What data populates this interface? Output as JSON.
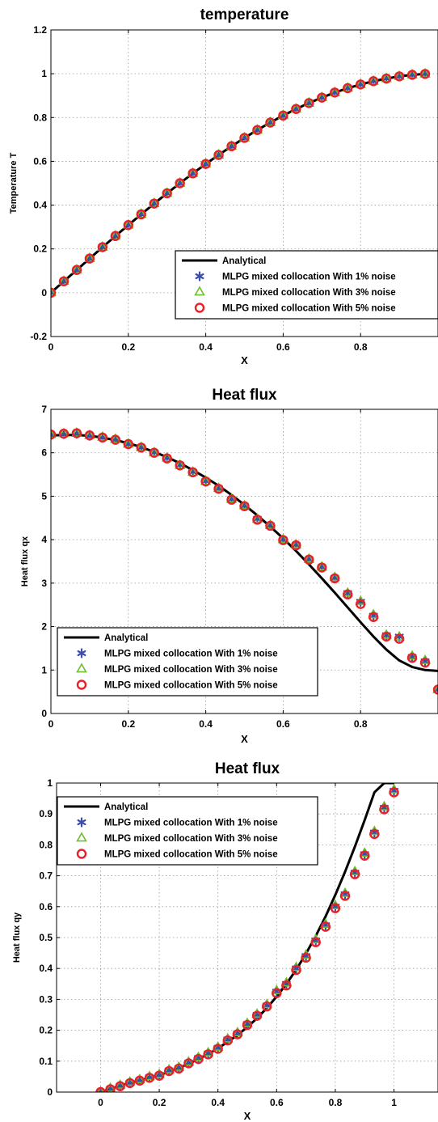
{
  "chart_data": [
    {
      "type": "line",
      "title": "temperature",
      "xlabel": "X",
      "ylabel": "Temperature T",
      "xlim": [
        0,
        1
      ],
      "ylim": [
        -0.2,
        1.2
      ],
      "xticks": [
        0,
        0.2,
        0.4,
        0.6,
        0.8
      ],
      "yticks": [
        -0.2,
        0,
        0.2,
        0.4,
        0.6,
        0.8,
        1,
        1.2
      ],
      "grid": true,
      "legend_position": "bottom-right",
      "x": [
        0,
        0.0333,
        0.0667,
        0.1,
        0.1333,
        0.1667,
        0.2,
        0.2333,
        0.2667,
        0.3,
        0.3333,
        0.3667,
        0.4,
        0.4333,
        0.4667,
        0.5,
        0.5333,
        0.5667,
        0.6,
        0.6333,
        0.6667,
        0.7,
        0.7333,
        0.7667,
        0.8,
        0.8333,
        0.8667,
        0.9,
        0.9333,
        0.9667
      ],
      "series": [
        {
          "name": "Analytical",
          "style": "line",
          "color": "#000000",
          "values": [
            0,
            0.052,
            0.104,
            0.156,
            0.208,
            0.259,
            0.309,
            0.358,
            0.407,
            0.454,
            0.5,
            0.545,
            0.588,
            0.629,
            0.669,
            0.707,
            0.743,
            0.777,
            0.809,
            0.839,
            0.866,
            0.891,
            0.914,
            0.934,
            0.951,
            0.966,
            0.978,
            0.988,
            0.995,
            0.999
          ]
        },
        {
          "name": "MLPG mixed collocation With 1% noise",
          "style": "star",
          "color": "#3b4ea8",
          "values": [
            0,
            0.052,
            0.104,
            0.156,
            0.208,
            0.259,
            0.309,
            0.358,
            0.407,
            0.454,
            0.5,
            0.545,
            0.588,
            0.629,
            0.669,
            0.707,
            0.743,
            0.777,
            0.809,
            0.839,
            0.866,
            0.891,
            0.914,
            0.934,
            0.951,
            0.966,
            0.978,
            0.988,
            0.995,
            0.999
          ]
        },
        {
          "name": "MLPG mixed collocation With 3% noise",
          "style": "triangle",
          "color": "#6cbf2a",
          "values": [
            0,
            0.052,
            0.104,
            0.156,
            0.208,
            0.259,
            0.309,
            0.358,
            0.407,
            0.454,
            0.5,
            0.545,
            0.588,
            0.629,
            0.669,
            0.707,
            0.743,
            0.777,
            0.809,
            0.839,
            0.866,
            0.891,
            0.914,
            0.934,
            0.951,
            0.966,
            0.978,
            0.988,
            0.995,
            0.999
          ]
        },
        {
          "name": "MLPG mixed collocation With 5% noise",
          "style": "circle",
          "color": "#e8202a",
          "values": [
            0,
            0.052,
            0.104,
            0.156,
            0.208,
            0.259,
            0.309,
            0.358,
            0.407,
            0.454,
            0.5,
            0.545,
            0.588,
            0.629,
            0.669,
            0.707,
            0.743,
            0.777,
            0.809,
            0.839,
            0.866,
            0.891,
            0.914,
            0.934,
            0.951,
            0.966,
            0.978,
            0.988,
            0.995,
            0.999
          ]
        }
      ]
    },
    {
      "type": "line",
      "title": "Heat flux",
      "xlabel": "X",
      "ylabel": "Heat flux qx",
      "xlim": [
        0,
        1
      ],
      "ylim": [
        0,
        7
      ],
      "xticks": [
        0,
        0.2,
        0.4,
        0.6,
        0.8
      ],
      "yticks": [
        0,
        1,
        2,
        3,
        4,
        5,
        6,
        7
      ],
      "grid": true,
      "legend_position": "bottom-left",
      "x": [
        0,
        0.0333,
        0.0667,
        0.1,
        0.1333,
        0.1667,
        0.2,
        0.2333,
        0.2667,
        0.3,
        0.3333,
        0.3667,
        0.4,
        0.4333,
        0.4667,
        0.5,
        0.5333,
        0.5667,
        0.6,
        0.6333,
        0.6667,
        0.7,
        0.7333,
        0.7667,
        0.8,
        0.8333,
        0.8667,
        0.9,
        0.9333,
        0.9667,
        1
      ],
      "series": [
        {
          "name": "Analytical",
          "style": "line",
          "color": "#000000",
          "values": [
            6.4,
            6.41,
            6.41,
            6.39,
            6.35,
            6.29,
            6.22,
            6.13,
            6.02,
            5.9,
            5.76,
            5.6,
            5.43,
            5.24,
            5.03,
            4.8,
            4.56,
            4.3,
            4.03,
            3.74,
            3.43,
            3.11,
            2.78,
            2.44,
            2.1,
            1.77,
            1.47,
            1.22,
            1.07,
            1.0,
            0.98
          ]
        },
        {
          "name": "MLPG mixed collocation With 1% noise",
          "style": "star",
          "color": "#3b4ea8",
          "values": [
            6.42,
            6.43,
            6.44,
            6.39,
            6.35,
            6.3,
            6.2,
            6.12,
            6.01,
            5.88,
            5.72,
            5.56,
            5.35,
            5.18,
            4.93,
            4.78,
            4.48,
            4.33,
            4.0,
            3.88,
            3.55,
            3.37,
            3.12,
            2.77,
            2.57,
            2.25,
            1.8,
            1.77,
            1.3,
            1.2,
            0.55
          ]
        },
        {
          "name": "MLPG mixed collocation With 3% noise",
          "style": "triangle",
          "color": "#6cbf2a",
          "values": [
            6.42,
            6.44,
            6.45,
            6.4,
            6.36,
            6.31,
            6.2,
            6.12,
            6.0,
            5.88,
            5.71,
            5.55,
            5.34,
            5.18,
            4.93,
            4.78,
            4.47,
            4.33,
            4.0,
            3.88,
            3.55,
            3.37,
            3.13,
            2.77,
            2.58,
            2.27,
            1.8,
            1.76,
            1.32,
            1.22,
            0.55
          ]
        },
        {
          "name": "MLPG mixed collocation With 5% noise",
          "style": "circle",
          "color": "#e8202a",
          "values": [
            6.42,
            6.44,
            6.45,
            6.4,
            6.35,
            6.3,
            6.2,
            6.12,
            6.0,
            5.87,
            5.71,
            5.55,
            5.34,
            5.17,
            4.92,
            4.77,
            4.46,
            4.32,
            3.99,
            3.87,
            3.54,
            3.36,
            3.11,
            2.74,
            2.52,
            2.22,
            1.77,
            1.72,
            1.28,
            1.17,
            0.55
          ]
        }
      ]
    },
    {
      "type": "line",
      "title": "Heat flux",
      "xlabel": "X",
      "ylabel": "Heat flux qy",
      "xlim": [
        -0.15,
        1.15
      ],
      "ylim": [
        0,
        1
      ],
      "xticks": [
        0,
        0.2,
        0.4,
        0.6,
        0.8,
        1
      ],
      "yticks": [
        0,
        0.1,
        0.2,
        0.3,
        0.4,
        0.5,
        0.6,
        0.7,
        0.8,
        0.9,
        1
      ],
      "grid": true,
      "legend_position": "top-left",
      "x": [
        0,
        0.0333,
        0.0667,
        0.1,
        0.1333,
        0.1667,
        0.2,
        0.2333,
        0.2667,
        0.3,
        0.3333,
        0.3667,
        0.4,
        0.4333,
        0.4667,
        0.5,
        0.5333,
        0.5667,
        0.6,
        0.6333,
        0.6667,
        0.7,
        0.7333,
        0.7667,
        0.8,
        0.8333,
        0.8667,
        0.9,
        0.9333,
        0.9667,
        1
      ],
      "series": [
        {
          "name": "Analytical",
          "style": "line",
          "color": "#000000",
          "values": [
            0,
            0.01,
            0.02,
            0.03,
            0.038,
            0.046,
            0.055,
            0.066,
            0.078,
            0.092,
            0.107,
            0.123,
            0.142,
            0.162,
            0.185,
            0.21,
            0.239,
            0.272,
            0.309,
            0.35,
            0.396,
            0.448,
            0.505,
            0.568,
            0.638,
            0.713,
            0.794,
            0.88,
            0.97,
            1.0,
            1.0
          ]
        },
        {
          "name": "MLPG mixed collocation With 1% noise",
          "style": "star",
          "color": "#3b4ea8",
          "values": [
            0,
            0.01,
            0.02,
            0.03,
            0.038,
            0.048,
            0.055,
            0.07,
            0.078,
            0.095,
            0.11,
            0.125,
            0.143,
            0.17,
            0.19,
            0.22,
            0.25,
            0.28,
            0.325,
            0.35,
            0.4,
            0.44,
            0.49,
            0.54,
            0.6,
            0.64,
            0.71,
            0.77,
            0.84,
            0.92,
            0.975
          ]
        },
        {
          "name": "MLPG mixed collocation With 3% noise",
          "style": "triangle",
          "color": "#6cbf2a",
          "values": [
            0,
            0.012,
            0.022,
            0.032,
            0.04,
            0.05,
            0.057,
            0.072,
            0.08,
            0.097,
            0.112,
            0.127,
            0.145,
            0.172,
            0.192,
            0.222,
            0.252,
            0.283,
            0.328,
            0.353,
            0.403,
            0.443,
            0.493,
            0.543,
            0.603,
            0.643,
            0.713,
            0.773,
            0.843,
            0.923,
            0.978
          ]
        },
        {
          "name": "MLPG mixed collocation With 5% noise",
          "style": "circle",
          "color": "#e8202a",
          "values": [
            0,
            0.009,
            0.019,
            0.029,
            0.037,
            0.046,
            0.053,
            0.068,
            0.076,
            0.093,
            0.107,
            0.122,
            0.14,
            0.167,
            0.187,
            0.217,
            0.247,
            0.277,
            0.32,
            0.345,
            0.395,
            0.435,
            0.485,
            0.535,
            0.595,
            0.635,
            0.705,
            0.765,
            0.835,
            0.915,
            0.97
          ]
        }
      ]
    }
  ]
}
